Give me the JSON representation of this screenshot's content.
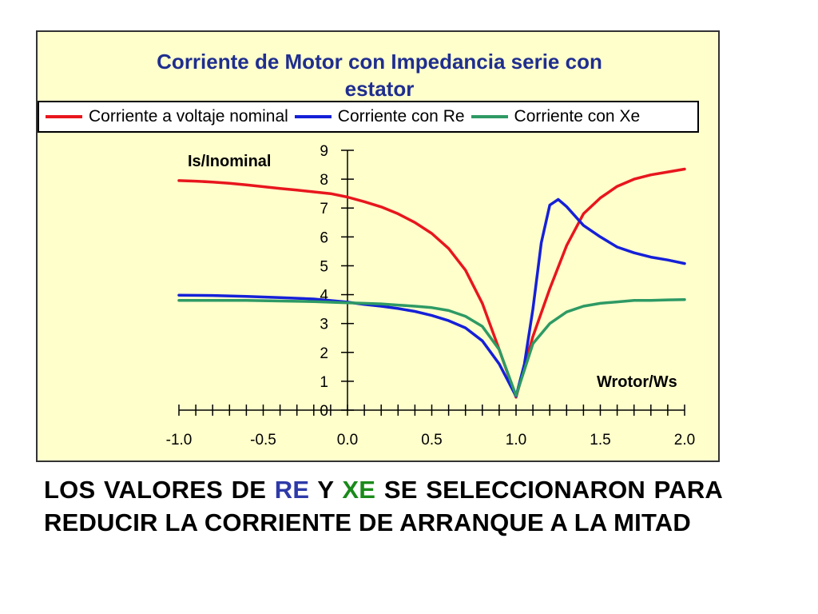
{
  "chart_data": {
    "type": "line",
    "title": "Corriente de Motor con Impedancia serie con estator",
    "ylabel": "Is/Inominal",
    "xlabel": "Wrotor/Ws",
    "xlim": [
      -1.0,
      2.0
    ],
    "ylim": [
      0,
      9
    ],
    "x_ticks": [
      "-1.0",
      "-0.5",
      "0.0",
      "0.5",
      "1.0",
      "1.5",
      "2.0"
    ],
    "y_ticks": [
      "0",
      "1",
      "2",
      "3",
      "4",
      "5",
      "6",
      "7",
      "8",
      "9"
    ],
    "x_minor_step": 0.1,
    "grid": false,
    "legend_position": "top",
    "series": [
      {
        "name": "Corriente a voltaje nominal",
        "color": "#e8161d",
        "points": [
          [
            -1.0,
            7.95
          ],
          [
            -0.9,
            7.93
          ],
          [
            -0.8,
            7.9
          ],
          [
            -0.7,
            7.86
          ],
          [
            -0.6,
            7.8
          ],
          [
            -0.5,
            7.74
          ],
          [
            -0.4,
            7.68
          ],
          [
            -0.3,
            7.62
          ],
          [
            -0.2,
            7.56
          ],
          [
            -0.1,
            7.5
          ],
          [
            0.0,
            7.38
          ],
          [
            0.1,
            7.22
          ],
          [
            0.2,
            7.04
          ],
          [
            0.3,
            6.8
          ],
          [
            0.4,
            6.5
          ],
          [
            0.5,
            6.12
          ],
          [
            0.6,
            5.6
          ],
          [
            0.7,
            4.85
          ],
          [
            0.8,
            3.7
          ],
          [
            0.9,
            2.1
          ],
          [
            1.0,
            0.45
          ],
          [
            1.1,
            2.55
          ],
          [
            1.2,
            4.2
          ],
          [
            1.3,
            5.7
          ],
          [
            1.4,
            6.8
          ],
          [
            1.5,
            7.35
          ],
          [
            1.6,
            7.75
          ],
          [
            1.7,
            8.0
          ],
          [
            1.8,
            8.15
          ],
          [
            1.9,
            8.25
          ],
          [
            2.0,
            8.35
          ]
        ]
      },
      {
        "name": "Corriente con Re",
        "color": "#1520d8",
        "points": [
          [
            -1.0,
            3.98
          ],
          [
            -0.8,
            3.97
          ],
          [
            -0.6,
            3.94
          ],
          [
            -0.4,
            3.9
          ],
          [
            -0.2,
            3.85
          ],
          [
            0.0,
            3.74
          ],
          [
            0.1,
            3.66
          ],
          [
            0.2,
            3.6
          ],
          [
            0.3,
            3.52
          ],
          [
            0.4,
            3.42
          ],
          [
            0.5,
            3.28
          ],
          [
            0.6,
            3.1
          ],
          [
            0.7,
            2.85
          ],
          [
            0.8,
            2.4
          ],
          [
            0.9,
            1.6
          ],
          [
            1.0,
            0.48
          ],
          [
            1.05,
            1.6
          ],
          [
            1.1,
            3.5
          ],
          [
            1.15,
            5.8
          ],
          [
            1.2,
            7.1
          ],
          [
            1.25,
            7.3
          ],
          [
            1.3,
            7.05
          ],
          [
            1.4,
            6.4
          ],
          [
            1.5,
            6.0
          ],
          [
            1.6,
            5.65
          ],
          [
            1.7,
            5.45
          ],
          [
            1.8,
            5.3
          ],
          [
            1.9,
            5.2
          ],
          [
            2.0,
            5.08
          ]
        ]
      },
      {
        "name": "Corriente con Xe",
        "color": "#2e9a64",
        "points": [
          [
            -1.0,
            3.8
          ],
          [
            -0.8,
            3.8
          ],
          [
            -0.6,
            3.8
          ],
          [
            -0.4,
            3.78
          ],
          [
            -0.2,
            3.76
          ],
          [
            0.0,
            3.72
          ],
          [
            0.1,
            3.7
          ],
          [
            0.2,
            3.68
          ],
          [
            0.3,
            3.64
          ],
          [
            0.4,
            3.6
          ],
          [
            0.5,
            3.55
          ],
          [
            0.6,
            3.45
          ],
          [
            0.7,
            3.25
          ],
          [
            0.8,
            2.9
          ],
          [
            0.9,
            2.1
          ],
          [
            1.0,
            0.5
          ],
          [
            1.1,
            2.3
          ],
          [
            1.2,
            3.0
          ],
          [
            1.3,
            3.4
          ],
          [
            1.4,
            3.6
          ],
          [
            1.5,
            3.7
          ],
          [
            1.6,
            3.75
          ],
          [
            1.7,
            3.8
          ],
          [
            1.8,
            3.8
          ],
          [
            1.9,
            3.82
          ],
          [
            2.0,
            3.83
          ]
        ]
      }
    ]
  },
  "caption": {
    "part1": "LOS VALORES DE ",
    "re": "RE",
    "part2": " Y ",
    "xe": "XE",
    "part3": " SE SELECCIONARON PARA REDUCIR LA CORRIENTE DE ARRANQUE A LA MITAD"
  },
  "colors": {
    "plot_background": "#ffffcc",
    "title": "#1f2e8f",
    "caption_re": "#2e3aa8",
    "caption_xe": "#1a8a1a"
  }
}
